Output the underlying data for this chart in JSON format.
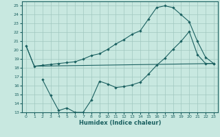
{
  "xlabel": "Humidex (Indice chaleur)",
  "bg_color": "#c8e8e0",
  "grid_color": "#a0c8c0",
  "line_color": "#1a6060",
  "xlim": [
    -0.5,
    23.5
  ],
  "ylim": [
    13,
    25.5
  ],
  "xticks": [
    0,
    1,
    2,
    3,
    4,
    5,
    6,
    7,
    8,
    9,
    10,
    11,
    12,
    13,
    14,
    15,
    16,
    17,
    18,
    19,
    20,
    21,
    22,
    23
  ],
  "yticks": [
    13,
    14,
    15,
    16,
    17,
    18,
    19,
    20,
    21,
    22,
    23,
    24,
    25
  ],
  "curve1_x": [
    0,
    1,
    2,
    3,
    4,
    5,
    6,
    7,
    8,
    9,
    10,
    11,
    12,
    13,
    14,
    15,
    16,
    17,
    18,
    19,
    20,
    21,
    22,
    23
  ],
  "curve1_y": [
    20.5,
    18.2,
    18.3,
    18.4,
    18.5,
    18.6,
    18.7,
    19.0,
    19.4,
    19.6,
    20.1,
    20.7,
    21.2,
    21.8,
    22.2,
    23.5,
    24.8,
    25.0,
    24.8,
    24.0,
    23.2,
    21.0,
    19.2,
    18.5
  ],
  "curve2_x": [
    0,
    1,
    23
  ],
  "curve2_y": [
    20.5,
    18.2,
    18.5
  ],
  "curve3_x": [
    2,
    3,
    4,
    5,
    6,
    7,
    8,
    9,
    10,
    11,
    12,
    13,
    14,
    15,
    16,
    17,
    18,
    19,
    20,
    21,
    22,
    23
  ],
  "curve3_y": [
    16.7,
    14.9,
    13.2,
    13.5,
    13.0,
    13.0,
    14.4,
    16.5,
    16.2,
    15.8,
    15.9,
    16.1,
    16.4,
    17.3,
    18.3,
    19.1,
    20.1,
    21.0,
    22.1,
    19.5,
    18.5,
    18.5
  ]
}
